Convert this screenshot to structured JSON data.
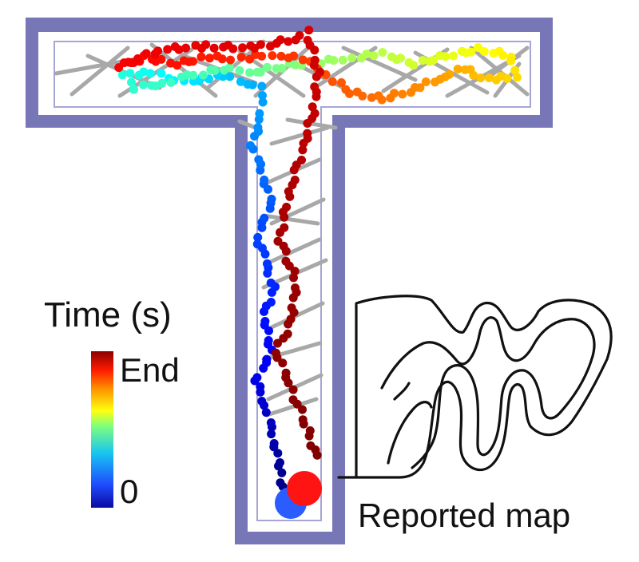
{
  "legend": {
    "title": "Time (s)",
    "end_label": "End",
    "start_label": "0",
    "colormap": "jet"
  },
  "reported_map_caption": "Reported map",
  "colors": {
    "maze_wall": "#7777b8",
    "maze_inner_line": "#9a9ad0",
    "gray_segments": "#a8a8a8",
    "sketch_line": "#111111",
    "start_marker": "#2a5cff",
    "end_marker": "#ff1414"
  }
}
